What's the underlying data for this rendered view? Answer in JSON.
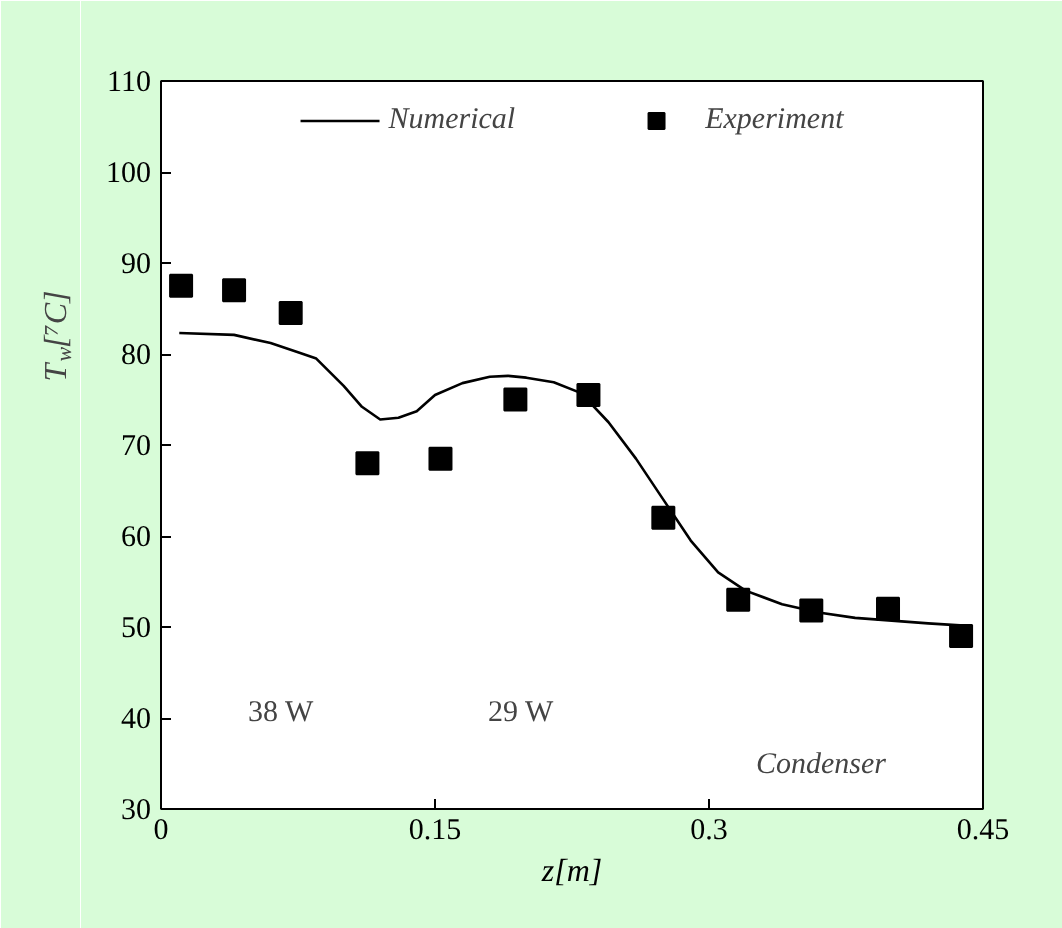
{
  "chart_data": {
    "type": "line",
    "xlabel": "z[m]",
    "ylabel": "T$_{w}$[⁷C]",
    "xlim": [
      0,
      0.45
    ],
    "xticks": [
      0,
      0.15,
      0.3,
      0.45
    ],
    "ylim": [
      30,
      110
    ],
    "yticks": [
      30,
      40,
      50,
      60,
      70,
      80,
      90,
      100,
      110
    ],
    "grid": false,
    "legend": "top",
    "series": [
      {
        "name": "Numerical",
        "color": "#000000",
        "line_style": "solid",
        "marker": "none",
        "x": [
          0.01,
          0.04,
          0.06,
          0.075,
          0.085,
          0.1,
          0.11,
          0.12,
          0.13,
          0.14,
          0.15,
          0.165,
          0.18,
          0.19,
          0.2,
          0.215,
          0.23,
          0.245,
          0.26,
          0.275,
          0.29,
          0.305,
          0.32,
          0.34,
          0.36,
          0.38,
          0.4,
          0.42,
          0.444
        ],
        "values": [
          82.3,
          82.1,
          81.2,
          80.2,
          79.5,
          76.5,
          74.2,
          72.8,
          73.0,
          73.7,
          75.5,
          76.8,
          77.5,
          77.6,
          77.4,
          76.9,
          75.7,
          72.5,
          68.5,
          64,
          59.5,
          56,
          54,
          52.5,
          51.6,
          51.0,
          50.7,
          50.4,
          50.1
        ]
      },
      {
        "name": "Experiment",
        "type": "scatter",
        "color": "#000000",
        "marker": "square",
        "x": [
          0.011,
          0.04,
          0.071,
          0.113,
          0.153,
          0.194,
          0.234,
          0.275,
          0.316,
          0.356,
          0.398,
          0.438
        ],
        "values": [
          87.5,
          87,
          84.5,
          68,
          68.5,
          75,
          75.5,
          62,
          53,
          51.8,
          52,
          49
        ]
      }
    ],
    "annotations": [
      "38 W",
      "29 W",
      "Condenser"
    ]
  }
}
